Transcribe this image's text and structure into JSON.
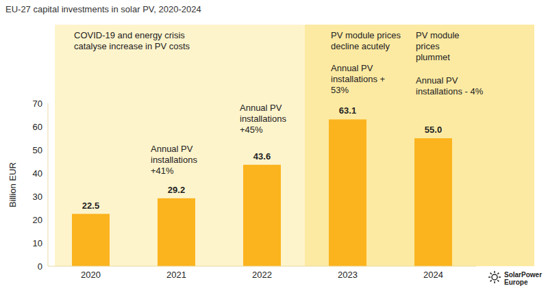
{
  "chart_data": {
    "type": "bar",
    "title": "EU-27 capital investments in solar PV, 2020-2024",
    "y_label": "Billion EUR",
    "categories": [
      "2020",
      "2021",
      "2022",
      "2023",
      "2024"
    ],
    "values": [
      22.5,
      29.2,
      43.6,
      63.1,
      55.0
    ],
    "value_labels": [
      "22.5",
      "29.2",
      "43.6",
      "63.1",
      "55.0"
    ],
    "data_labels": true,
    "color": "#fbb41e",
    "ylim": [
      0,
      70
    ],
    "yticks": [
      0,
      10,
      20,
      30,
      40,
      50,
      60,
      70
    ],
    "grid": false,
    "highlighted_categories": [
      "2023",
      "2024"
    ],
    "annotations": [
      {
        "category": "2020",
        "text": "COVID-19 and energy crisis catalyse increase in PV costs"
      },
      {
        "category": "2021",
        "text": "Annual PV installations +41%"
      },
      {
        "category": "2022",
        "text": "Annual PV installations +45%"
      },
      {
        "category": "2023",
        "text": "PV module prices decline acutely"
      },
      {
        "category": "2023",
        "text": "Annual PV installations + 53%"
      },
      {
        "category": "2024",
        "text": "PV module prices plummet"
      },
      {
        "category": "2024",
        "text": "Annual PV installations - 4%"
      }
    ],
    "logo_text": "SolarPower Europe"
  }
}
